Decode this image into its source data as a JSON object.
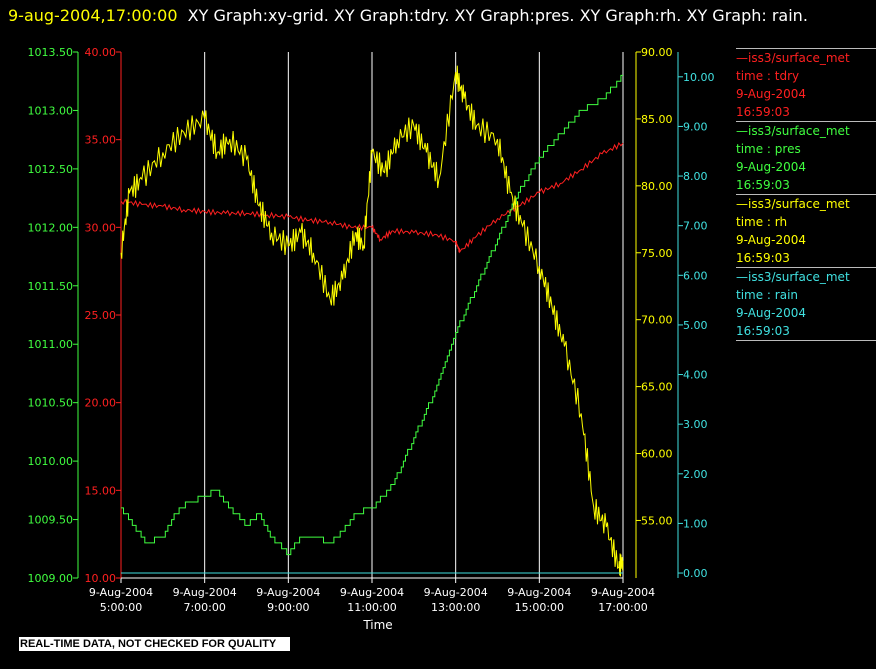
{
  "header": {
    "timestamp": "9-aug-2004,17:00:00",
    "graphs": "XY Graph:xy-grid.  XY Graph:tdry.  XY Graph:pres.  XY Graph:rh.  XY Graph: rain."
  },
  "footer": {
    "disclaimer": "REAL-TIME DATA, NOT CHECKED FOR QUALITY"
  },
  "legend": [
    {
      "source": "iss3/surface_met",
      "desc": "time : tdry",
      "date": "9-Aug-2004",
      "time": "16:59:03",
      "color": "#ff2020"
    },
    {
      "source": "iss3/surface_met",
      "desc": "time : pres",
      "date": "9-Aug-2004",
      "time": "16:59:03",
      "color": "#40ff40"
    },
    {
      "source": "iss3/surface_met",
      "desc": "time : rh",
      "date": "9-Aug-2004",
      "time": "16:59:03",
      "color": "#ffff00"
    },
    {
      "source": "iss3/surface_met",
      "desc": "time : rain",
      "date": "9-Aug-2004",
      "time": "16:59:03",
      "color": "#40e0e0"
    }
  ],
  "chart_data": {
    "type": "line",
    "xlabel": "Time",
    "x_ticks": [
      {
        "date": "9-Aug-2004",
        "time": "5:00:00"
      },
      {
        "date": "9-Aug-2004",
        "time": "7:00:00"
      },
      {
        "date": "9-Aug-2004",
        "time": "9:00:00"
      },
      {
        "date": "9-Aug-2004",
        "time": "11:00:00"
      },
      {
        "date": "9-Aug-2004",
        "time": "13:00:00"
      },
      {
        "date": "9-Aug-2004",
        "time": "15:00:00"
      },
      {
        "date": "9-Aug-2004",
        "time": "17:00:00"
      }
    ],
    "xlim_hours": [
      5,
      17
    ],
    "grid": "vertical",
    "axes": {
      "tdry": {
        "color": "#ff2020",
        "ylim": [
          10,
          40
        ],
        "ticks": [
          "10.00",
          "15.00",
          "20.00",
          "25.00",
          "30.00",
          "35.00",
          "40.00"
        ]
      },
      "pres": {
        "color": "#40ff40",
        "ylim": [
          1009,
          1013.5
        ],
        "ticks": [
          "1009.00",
          "1009.50",
          "1010.00",
          "1010.50",
          "1011.00",
          "1011.50",
          "1012.00",
          "1012.50",
          "1013.00",
          "1013.50"
        ]
      },
      "rh": {
        "color": "#ffff00",
        "ylim": [
          50.7,
          90
        ],
        "ticks": [
          "55.00",
          "60.00",
          "65.00",
          "70.00",
          "75.00",
          "80.00",
          "85.00",
          "90.00"
        ]
      },
      "rain": {
        "color": "#40e0e0",
        "ylim": [
          -0.1,
          10.5
        ],
        "ticks": [
          "0.00",
          "1.00",
          "2.00",
          "3.00",
          "4.00",
          "5.00",
          "6.00",
          "7.00",
          "8.00",
          "9.00",
          "10.00"
        ]
      }
    },
    "series": [
      {
        "name": "tdry",
        "axis": "tdry",
        "x": [
          5.0,
          5.5,
          6.0,
          6.5,
          7.0,
          7.5,
          8.0,
          8.5,
          9.0,
          9.5,
          10.0,
          10.5,
          11.0,
          11.2,
          11.5,
          12.0,
          12.5,
          13.0,
          13.1,
          13.5,
          14.0,
          14.5,
          15.0,
          15.5,
          16.0,
          16.5,
          17.0
        ],
        "y": [
          31.5,
          31.3,
          31.2,
          31.0,
          30.9,
          30.8,
          30.8,
          30.7,
          30.6,
          30.4,
          30.3,
          30.0,
          30.0,
          29.3,
          29.8,
          29.7,
          29.6,
          29.2,
          28.6,
          29.5,
          30.5,
          31.2,
          32.0,
          32.5,
          33.3,
          34.2,
          34.8
        ]
      },
      {
        "name": "pres",
        "axis": "pres",
        "x": [
          5.0,
          5.3,
          5.6,
          6.0,
          6.3,
          6.6,
          7.0,
          7.3,
          7.6,
          8.0,
          8.3,
          8.6,
          9.0,
          9.3,
          9.6,
          10.0,
          10.3,
          10.6,
          11.0,
          11.5,
          12.0,
          12.5,
          13.0,
          13.5,
          14.0,
          14.5,
          15.0,
          15.5,
          16.0,
          16.5,
          17.0
        ],
        "y": [
          1009.6,
          1009.45,
          1009.3,
          1009.35,
          1009.55,
          1009.65,
          1009.7,
          1009.75,
          1009.6,
          1009.45,
          1009.55,
          1009.35,
          1009.2,
          1009.35,
          1009.35,
          1009.3,
          1009.4,
          1009.55,
          1009.6,
          1009.8,
          1010.2,
          1010.6,
          1011.1,
          1011.5,
          1011.9,
          1012.3,
          1012.6,
          1012.8,
          1013.0,
          1013.1,
          1013.3
        ]
      },
      {
        "name": "rh",
        "axis": "rh",
        "x": [
          5.0,
          5.2,
          5.5,
          6.0,
          6.5,
          7.0,
          7.3,
          7.6,
          8.0,
          8.3,
          8.6,
          9.0,
          9.3,
          9.6,
          10.0,
          10.3,
          10.6,
          10.8,
          11.0,
          11.3,
          11.6,
          12.0,
          12.3,
          12.6,
          13.0,
          13.2,
          13.5,
          14.0,
          14.3,
          14.6,
          15.0,
          15.3,
          15.6,
          16.0,
          16.3,
          16.6,
          16.9,
          17.0
        ],
        "y": [
          75.0,
          79.5,
          80.5,
          82.5,
          84.0,
          85.0,
          82.5,
          83.5,
          82.0,
          78.5,
          76.5,
          75.5,
          76.5,
          75.0,
          71.5,
          73.0,
          76.5,
          75.5,
          82.5,
          81.0,
          83.5,
          84.5,
          82.5,
          80.5,
          88.5,
          86.5,
          84.5,
          83.5,
          79.5,
          77.0,
          74.0,
          71.0,
          68.0,
          63.0,
          56.0,
          54.5,
          51.5,
          52.0
        ]
      },
      {
        "name": "rain",
        "axis": "rain",
        "x": [
          5.0,
          17.0
        ],
        "y": [
          0.0,
          0.0
        ]
      }
    ]
  }
}
